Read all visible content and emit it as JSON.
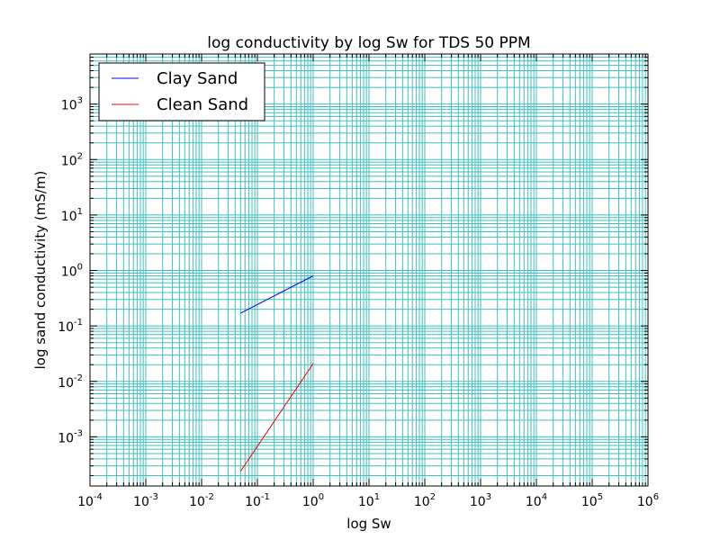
{
  "chart_data": {
    "type": "line",
    "title": "log conductivity by log Sw for TDS 50 PPM",
    "xlabel": "log Sw",
    "ylabel": "log sand conductivity (mS/m)",
    "x_scale": "log",
    "y_scale": "log",
    "xlim": [
      0.0001,
      1000000
    ],
    "ylim": [
      0.00013,
      8000
    ],
    "grid": true,
    "grid_color": "#40bfbf",
    "legend_position": "top-left",
    "x_ticks": [
      {
        "base": "10",
        "exp": "-4",
        "value": 0.0001
      },
      {
        "base": "10",
        "exp": "-3",
        "value": 0.001
      },
      {
        "base": "10",
        "exp": "-2",
        "value": 0.01
      },
      {
        "base": "10",
        "exp": "-1",
        "value": 0.1
      },
      {
        "base": "10",
        "exp": "0",
        "value": 1
      },
      {
        "base": "10",
        "exp": "1",
        "value": 10
      },
      {
        "base": "10",
        "exp": "2",
        "value": 100
      },
      {
        "base": "10",
        "exp": "3",
        "value": 1000
      },
      {
        "base": "10",
        "exp": "4",
        "value": 10000
      },
      {
        "base": "10",
        "exp": "5",
        "value": 100000
      },
      {
        "base": "10",
        "exp": "6",
        "value": 1000000
      }
    ],
    "y_ticks": [
      {
        "base": "10",
        "exp": "-3",
        "value": 0.001
      },
      {
        "base": "10",
        "exp": "-2",
        "value": 0.01
      },
      {
        "base": "10",
        "exp": "-1",
        "value": 0.1
      },
      {
        "base": "10",
        "exp": "0",
        "value": 1
      },
      {
        "base": "10",
        "exp": "1",
        "value": 10
      },
      {
        "base": "10",
        "exp": "2",
        "value": 100
      },
      {
        "base": "10",
        "exp": "3",
        "value": 1000
      }
    ],
    "series": [
      {
        "name": "Clay Sand",
        "color": "#0000ff",
        "x": [
          0.05,
          1.0
        ],
        "y": [
          0.17,
          0.8
        ]
      },
      {
        "name": "Clean Sand",
        "color": "#ff0000",
        "x": [
          0.05,
          1.0
        ],
        "y": [
          0.00024,
          0.021
        ]
      }
    ]
  }
}
